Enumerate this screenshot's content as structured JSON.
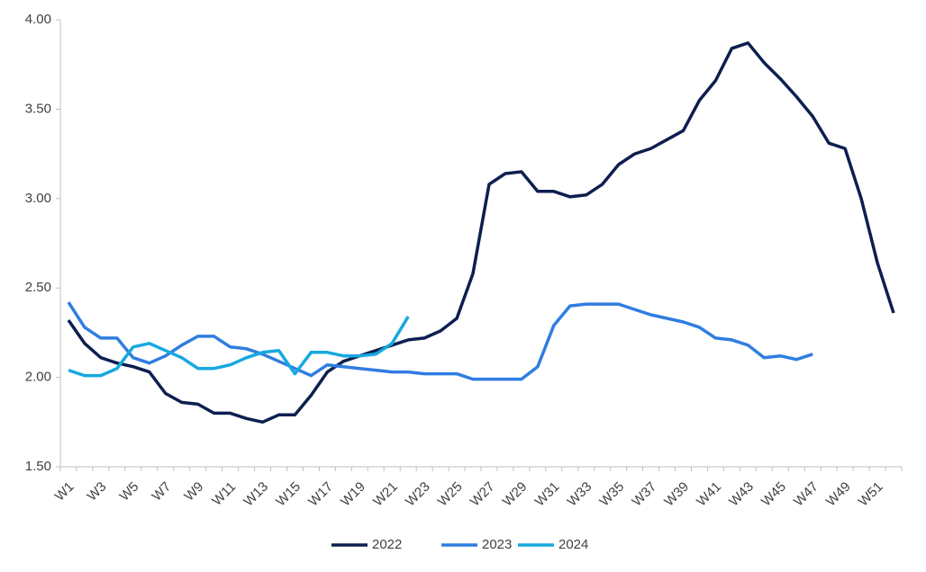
{
  "chart_data": {
    "type": "line",
    "categories": [
      "W1",
      null,
      "W3",
      null,
      "W5",
      null,
      "W7",
      null,
      "W9",
      null,
      "W11",
      null,
      "W13",
      null,
      "W15",
      null,
      "W17",
      null,
      "W19",
      null,
      "W21",
      null,
      "W23",
      null,
      "W25",
      null,
      "W27",
      null,
      "W29",
      null,
      "W31",
      null,
      "W33",
      null,
      "W35",
      null,
      "W37",
      null,
      "W39",
      null,
      "W41",
      null,
      "W43",
      null,
      "W45",
      null,
      "W47",
      null,
      "W49",
      null,
      "W51",
      null
    ],
    "series": [
      {
        "name": "2022",
        "color": "#0d1f4f",
        "values": [
          2.32,
          2.19,
          2.11,
          2.08,
          2.06,
          2.03,
          1.91,
          1.86,
          1.85,
          1.8,
          1.8,
          1.77,
          1.75,
          1.79,
          1.79,
          1.9,
          2.03,
          2.09,
          2.12,
          2.15,
          2.18,
          2.21,
          2.22,
          2.26,
          2.33,
          2.58,
          3.08,
          3.14,
          3.15,
          3.04,
          3.04,
          3.01,
          3.02,
          3.08,
          3.19,
          3.25,
          3.28,
          3.33,
          3.38,
          3.55,
          3.66,
          3.84,
          3.87,
          3.76,
          3.67,
          3.57,
          3.46,
          3.31,
          3.28,
          3.0,
          2.64,
          2.36
        ]
      },
      {
        "name": "2023",
        "color": "#2f7de1",
        "values": [
          2.42,
          2.28,
          2.22,
          2.22,
          2.11,
          2.08,
          2.12,
          2.18,
          2.23,
          2.23,
          2.17,
          2.16,
          2.13,
          2.09,
          2.05,
          2.01,
          2.07,
          2.06,
          2.05,
          2.04,
          2.03,
          2.03,
          2.02,
          2.02,
          2.02,
          1.99,
          1.99,
          1.99,
          1.99,
          2.06,
          2.29,
          2.4,
          2.41,
          2.41,
          2.41,
          2.38,
          2.35,
          2.33,
          2.31,
          2.28,
          2.22,
          2.21,
          2.18,
          2.11,
          2.12,
          2.1,
          2.13,
          null,
          null,
          null,
          null,
          null
        ]
      },
      {
        "name": "2024",
        "color": "#16a8e0",
        "values": [
          2.04,
          2.01,
          2.01,
          2.05,
          2.17,
          2.19,
          2.15,
          2.11,
          2.05,
          2.05,
          2.07,
          2.11,
          2.14,
          2.15,
          2.02,
          2.14,
          2.14,
          2.12,
          2.12,
          2.13,
          2.19,
          2.34,
          null,
          null,
          null,
          null,
          null,
          null,
          null,
          null,
          null,
          null,
          null,
          null,
          null,
          null,
          null,
          null,
          null,
          null,
          null,
          null,
          null,
          null,
          null,
          null,
          null,
          null,
          null,
          null,
          null,
          null
        ]
      }
    ],
    "ylim": [
      1.5,
      4
    ],
    "yticks": [
      {
        "value": 1.5,
        "label": "1.50"
      },
      {
        "value": 2,
        "label": "2.00"
      },
      {
        "value": 2.5,
        "label": "2.50"
      },
      {
        "value": 3,
        "label": "3.00"
      },
      {
        "value": 3.5,
        "label": "3.50"
      },
      {
        "value": 4,
        "label": "4.00"
      }
    ],
    "legend": "bottom"
  }
}
